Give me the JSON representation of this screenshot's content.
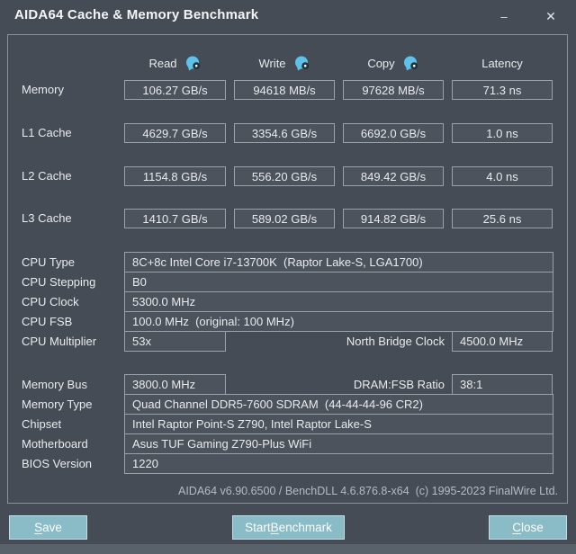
{
  "window": {
    "title": "AIDA64 Cache & Memory Benchmark",
    "controls": {
      "minimize": "–",
      "close": "✕"
    }
  },
  "columns": {
    "read": "Read",
    "write": "Write",
    "copy": "Copy",
    "latency": "Latency"
  },
  "benchmark_rows": [
    {
      "label": "Memory",
      "read": "106.27 GB/s",
      "write": "94618 MB/s",
      "copy": "97628 MB/s",
      "latency": "71.3 ns"
    },
    {
      "label": "L1 Cache",
      "read": "4629.7 GB/s",
      "write": "3354.6 GB/s",
      "copy": "6692.0 GB/s",
      "latency": "1.0 ns"
    },
    {
      "label": "L2 Cache",
      "read": "1154.8 GB/s",
      "write": "556.20 GB/s",
      "copy": "849.42 GB/s",
      "latency": "4.0 ns"
    },
    {
      "label": "L3 Cache",
      "read": "1410.7 GB/s",
      "write": "589.02 GB/s",
      "copy": "914.82 GB/s",
      "latency": "25.6 ns"
    }
  ],
  "cpu_rows": [
    {
      "label": "CPU Type",
      "value": "8C+8c Intel Core i7-13700K  (Raptor Lake-S, LGA1700)"
    },
    {
      "label": "CPU Stepping",
      "value": "B0"
    },
    {
      "label": "CPU Clock",
      "value": "5300.0 MHz"
    },
    {
      "label": "CPU FSB",
      "value": "100.0 MHz  (original: 100 MHz)"
    },
    {
      "label": "CPU Multiplier",
      "value": "53x",
      "extra_label": "North Bridge Clock",
      "extra_value": "4500.0 MHz"
    }
  ],
  "memory_rows": [
    {
      "label": "Memory Bus",
      "value": "3800.0 MHz",
      "extra_label": "DRAM:FSB Ratio",
      "extra_value": "38:1"
    },
    {
      "label": "Memory Type",
      "value": "Quad Channel DDR5-7600 SDRAM  (44-44-44-96 CR2)"
    },
    {
      "label": "Chipset",
      "value": "Intel Raptor Point-S Z790, Intel Raptor Lake-S"
    },
    {
      "label": "Motherboard",
      "value": "Asus TUF Gaming Z790-Plus WiFi"
    },
    {
      "label": "BIOS Version",
      "value": "1220"
    }
  ],
  "footer": {
    "version_line": "AIDA64 v6.90.6500 / BenchDLL 4.6.876.8-x64  (c) 1995-2023 FinalWire Ltd."
  },
  "buttons": {
    "save": {
      "label": "Save",
      "accel_index": 0
    },
    "start": {
      "label": "Start Benchmark",
      "accel_index": 6
    },
    "close": {
      "label": "Close",
      "accel_index": 0
    }
  },
  "colors": {
    "window_bg": "#454c56",
    "field_bg": "#4c535d",
    "field_border": "#9aa1a9",
    "panel_border": "#8a9199",
    "button_bg": "#8abcc8",
    "button_border": "#c2dfe6",
    "info_icon_blue": "#5ec1ea",
    "text": "#e9ebed"
  }
}
